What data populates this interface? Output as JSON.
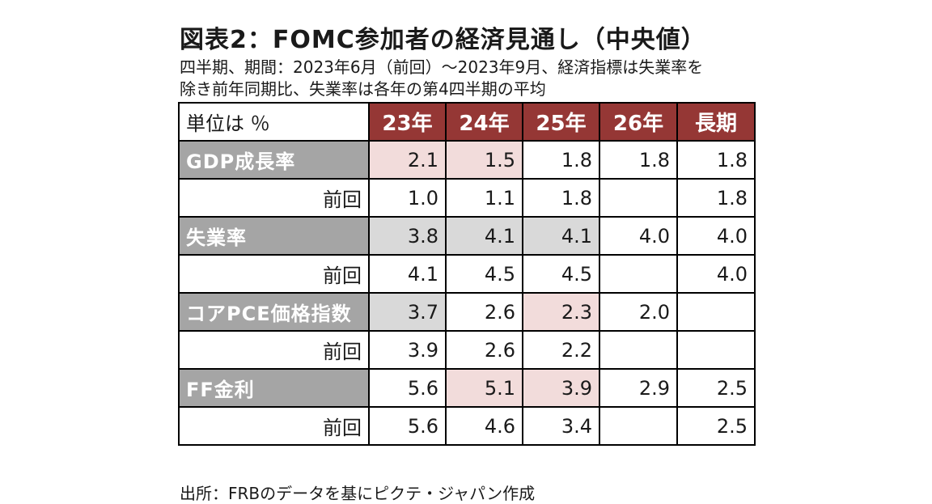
{
  "title": "図表2：FOMC参加者の経済見通し（中央値）",
  "subtitle_line1": "四半期、期間：2023年6月（前回）～2023年9月、経済指標は失業率を",
  "subtitle_line2": "除き前年同期比、失業率は各年の第4四半期の平均",
  "table": {
    "unit_label": "単位は ％",
    "columns": [
      "23年",
      "24年",
      "25年",
      "26年",
      "長期"
    ],
    "rows": [
      {
        "label": "GDP成長率",
        "kind": "main",
        "values": [
          "2.1",
          "1.5",
          "1.8",
          "1.8",
          "1.8"
        ],
        "shading": [
          "pink",
          "pink",
          "",
          "",
          ""
        ]
      },
      {
        "label": "前回",
        "kind": "prev",
        "values": [
          "1.0",
          "1.1",
          "1.8",
          "",
          "1.8"
        ],
        "shading": [
          "",
          "",
          "",
          "",
          ""
        ]
      },
      {
        "label": "失業率",
        "kind": "main",
        "values": [
          "3.8",
          "4.1",
          "4.1",
          "4.0",
          "4.0"
        ],
        "shading": [
          "gray",
          "gray",
          "gray",
          "",
          ""
        ]
      },
      {
        "label": "前回",
        "kind": "prev",
        "values": [
          "4.1",
          "4.5",
          "4.5",
          "",
          "4.0"
        ],
        "shading": [
          "",
          "",
          "",
          "",
          ""
        ]
      },
      {
        "label": "コアPCE価格指数",
        "kind": "main",
        "values": [
          "3.7",
          "2.6",
          "2.3",
          "2.0",
          ""
        ],
        "shading": [
          "gray",
          "",
          "pink",
          "",
          ""
        ]
      },
      {
        "label": "前回",
        "kind": "prev",
        "values": [
          "3.9",
          "2.6",
          "2.2",
          "",
          ""
        ],
        "shading": [
          "",
          "",
          "",
          "",
          ""
        ]
      },
      {
        "label": "FF金利",
        "kind": "main",
        "values": [
          "5.6",
          "5.1",
          "3.9",
          "2.9",
          "2.5"
        ],
        "shading": [
          "",
          "pink",
          "pink",
          "",
          ""
        ]
      },
      {
        "label": "前回",
        "kind": "prev",
        "values": [
          "5.6",
          "4.6",
          "3.4",
          "",
          "2.5"
        ],
        "shading": [
          "",
          "",
          "",
          "",
          ""
        ]
      }
    ]
  },
  "source": "出所：FRBのデータを基にピクテ・ジャパン作成",
  "colors": {
    "header_bg": "#953735",
    "label_bg": "#a5a5a5",
    "pink": "#f2dcdb",
    "gray": "#d9d9d9"
  }
}
